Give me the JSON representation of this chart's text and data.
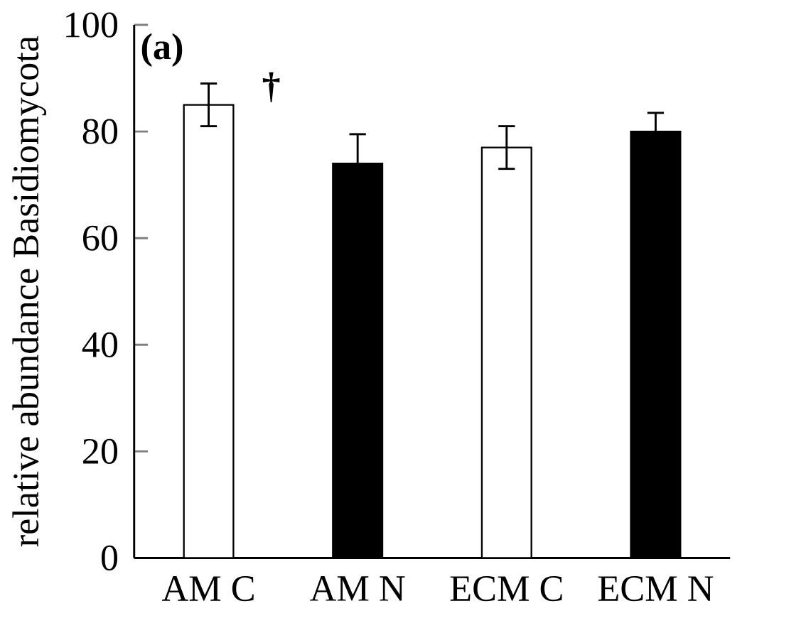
{
  "chart_data": {
    "type": "bar",
    "ylabel": "relative abundance Basidiomycota",
    "categories": [
      "AM C",
      "AM N",
      "ECM C",
      "ECM N"
    ],
    "values": [
      85,
      74,
      77,
      80
    ],
    "errors": [
      4,
      5.5,
      4,
      3.5
    ],
    "colors": [
      "#ffffff",
      "#000000",
      "#ffffff",
      "#000000"
    ],
    "ylim": [
      0,
      100
    ],
    "yticks": [
      0,
      20,
      40,
      60,
      80,
      100
    ],
    "annotations": [
      "(a)",
      "†"
    ]
  }
}
